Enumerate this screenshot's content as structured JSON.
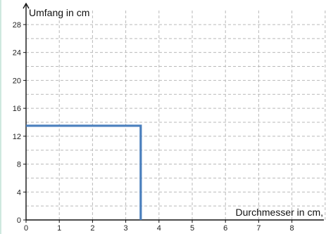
{
  "chart_data": {
    "type": "line",
    "xlabel": "Durchmesser in cm,",
    "ylabel": "Umfang in cm",
    "xlim": [
      0,
      9
    ],
    "ylim": [
      0,
      30
    ],
    "x_ticks": [
      0,
      1,
      2,
      3,
      4,
      5,
      6,
      7,
      8
    ],
    "y_ticks": [
      0,
      4,
      8,
      12,
      16,
      20,
      24,
      28
    ],
    "grid": true,
    "series": [
      {
        "color": "#4a7fbd",
        "points": [
          {
            "x": 0,
            "y": 13.5
          },
          {
            "x": 3.45,
            "y": 13.5
          },
          {
            "x": 3.45,
            "y": 0
          }
        ]
      }
    ]
  }
}
